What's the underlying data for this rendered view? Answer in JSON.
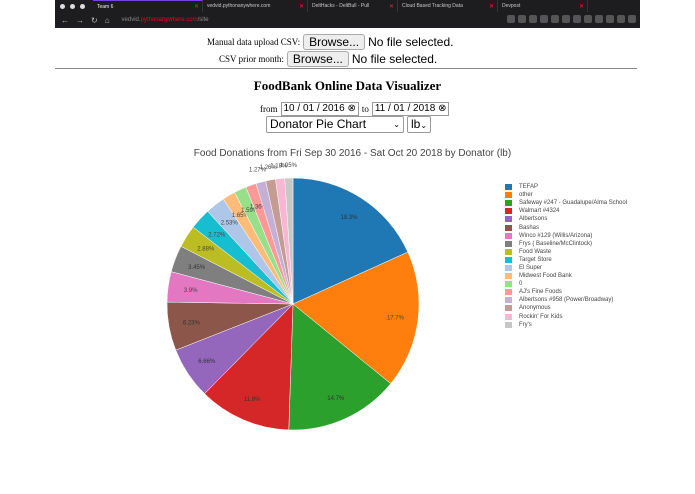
{
  "browser": {
    "tabs": [
      {
        "label": "Team 6",
        "active": true
      },
      {
        "label": "vedvid.pythonanywhere.com"
      },
      {
        "label": "DeltHacks - DeltBull - Pull"
      },
      {
        "label": "Cloud Based Tracking Data"
      },
      {
        "label": "Devpost"
      }
    ],
    "url_prefix": "vedvid.",
    "url_host": "pythonanywhere.com",
    "url_suffix": "/site"
  },
  "uploads": {
    "manual_label": "Manual data upload CSV:",
    "prior_label": "CSV prior month:",
    "browse_label": "Browse...",
    "no_file": "No file selected."
  },
  "page": {
    "title": "FoodBank Online Data Visualizer",
    "from_label": "from",
    "to_label": "to",
    "from_date": "10 / 01 / 2016",
    "to_date": "11 / 01 / 2018",
    "chart_select": "Donator Pie Chart",
    "unit_select": "lb"
  },
  "chart_data": {
    "type": "pie",
    "title": "Food Donations from Fri Sep 30 2016 - Sat Oct 20 2018 by Donator (lb)",
    "legend_position": "right",
    "categories": [
      "TEFAP",
      "other",
      "Safeway #247 - Guadalupe/Alma School",
      "Walmart #4324",
      "Albertsons",
      "Bashas",
      "Winco #129 (Willis/Arizona)",
      "Frys ( Baseline/McClintock)",
      "Food Waste",
      "Target Store",
      "El Super",
      "Midwest Food Bank",
      "0",
      "AJ's Fine Foods",
      "Albertsons #958 (Power/Broadway)",
      "Anonymous",
      "Rockin' For Kids",
      "Fry's"
    ],
    "values": [
      18.3,
      17.7,
      14.7,
      11.9,
      6.66,
      6.23,
      3.9,
      3.45,
      2.88,
      2.72,
      2.53,
      1.65,
      1.59,
      1.36,
      1.27,
      1.26,
      1.18,
      1.05
    ],
    "labels": [
      "18.3%",
      "17.7%",
      "14.7%",
      "11.9%",
      "6.66%",
      "6.23%",
      "3.9%",
      "3.45%",
      "2.88%",
      "2.72%",
      "2.53%",
      "1.65%",
      "1.59%",
      "1.36%",
      "1.27%",
      "1.26%",
      "1.18%",
      "1.05%"
    ],
    "colors": [
      "#1f77b4",
      "#ff7f0e",
      "#2ca02c",
      "#d62728",
      "#9467bd",
      "#8c564b",
      "#e377c2",
      "#7f7f7f",
      "#bcbd22",
      "#17becf",
      "#aec7e8",
      "#ffbb78",
      "#98df8a",
      "#ff9896",
      "#c5b0d5",
      "#c49c94",
      "#f7b6d2",
      "#c7c7c7"
    ]
  }
}
